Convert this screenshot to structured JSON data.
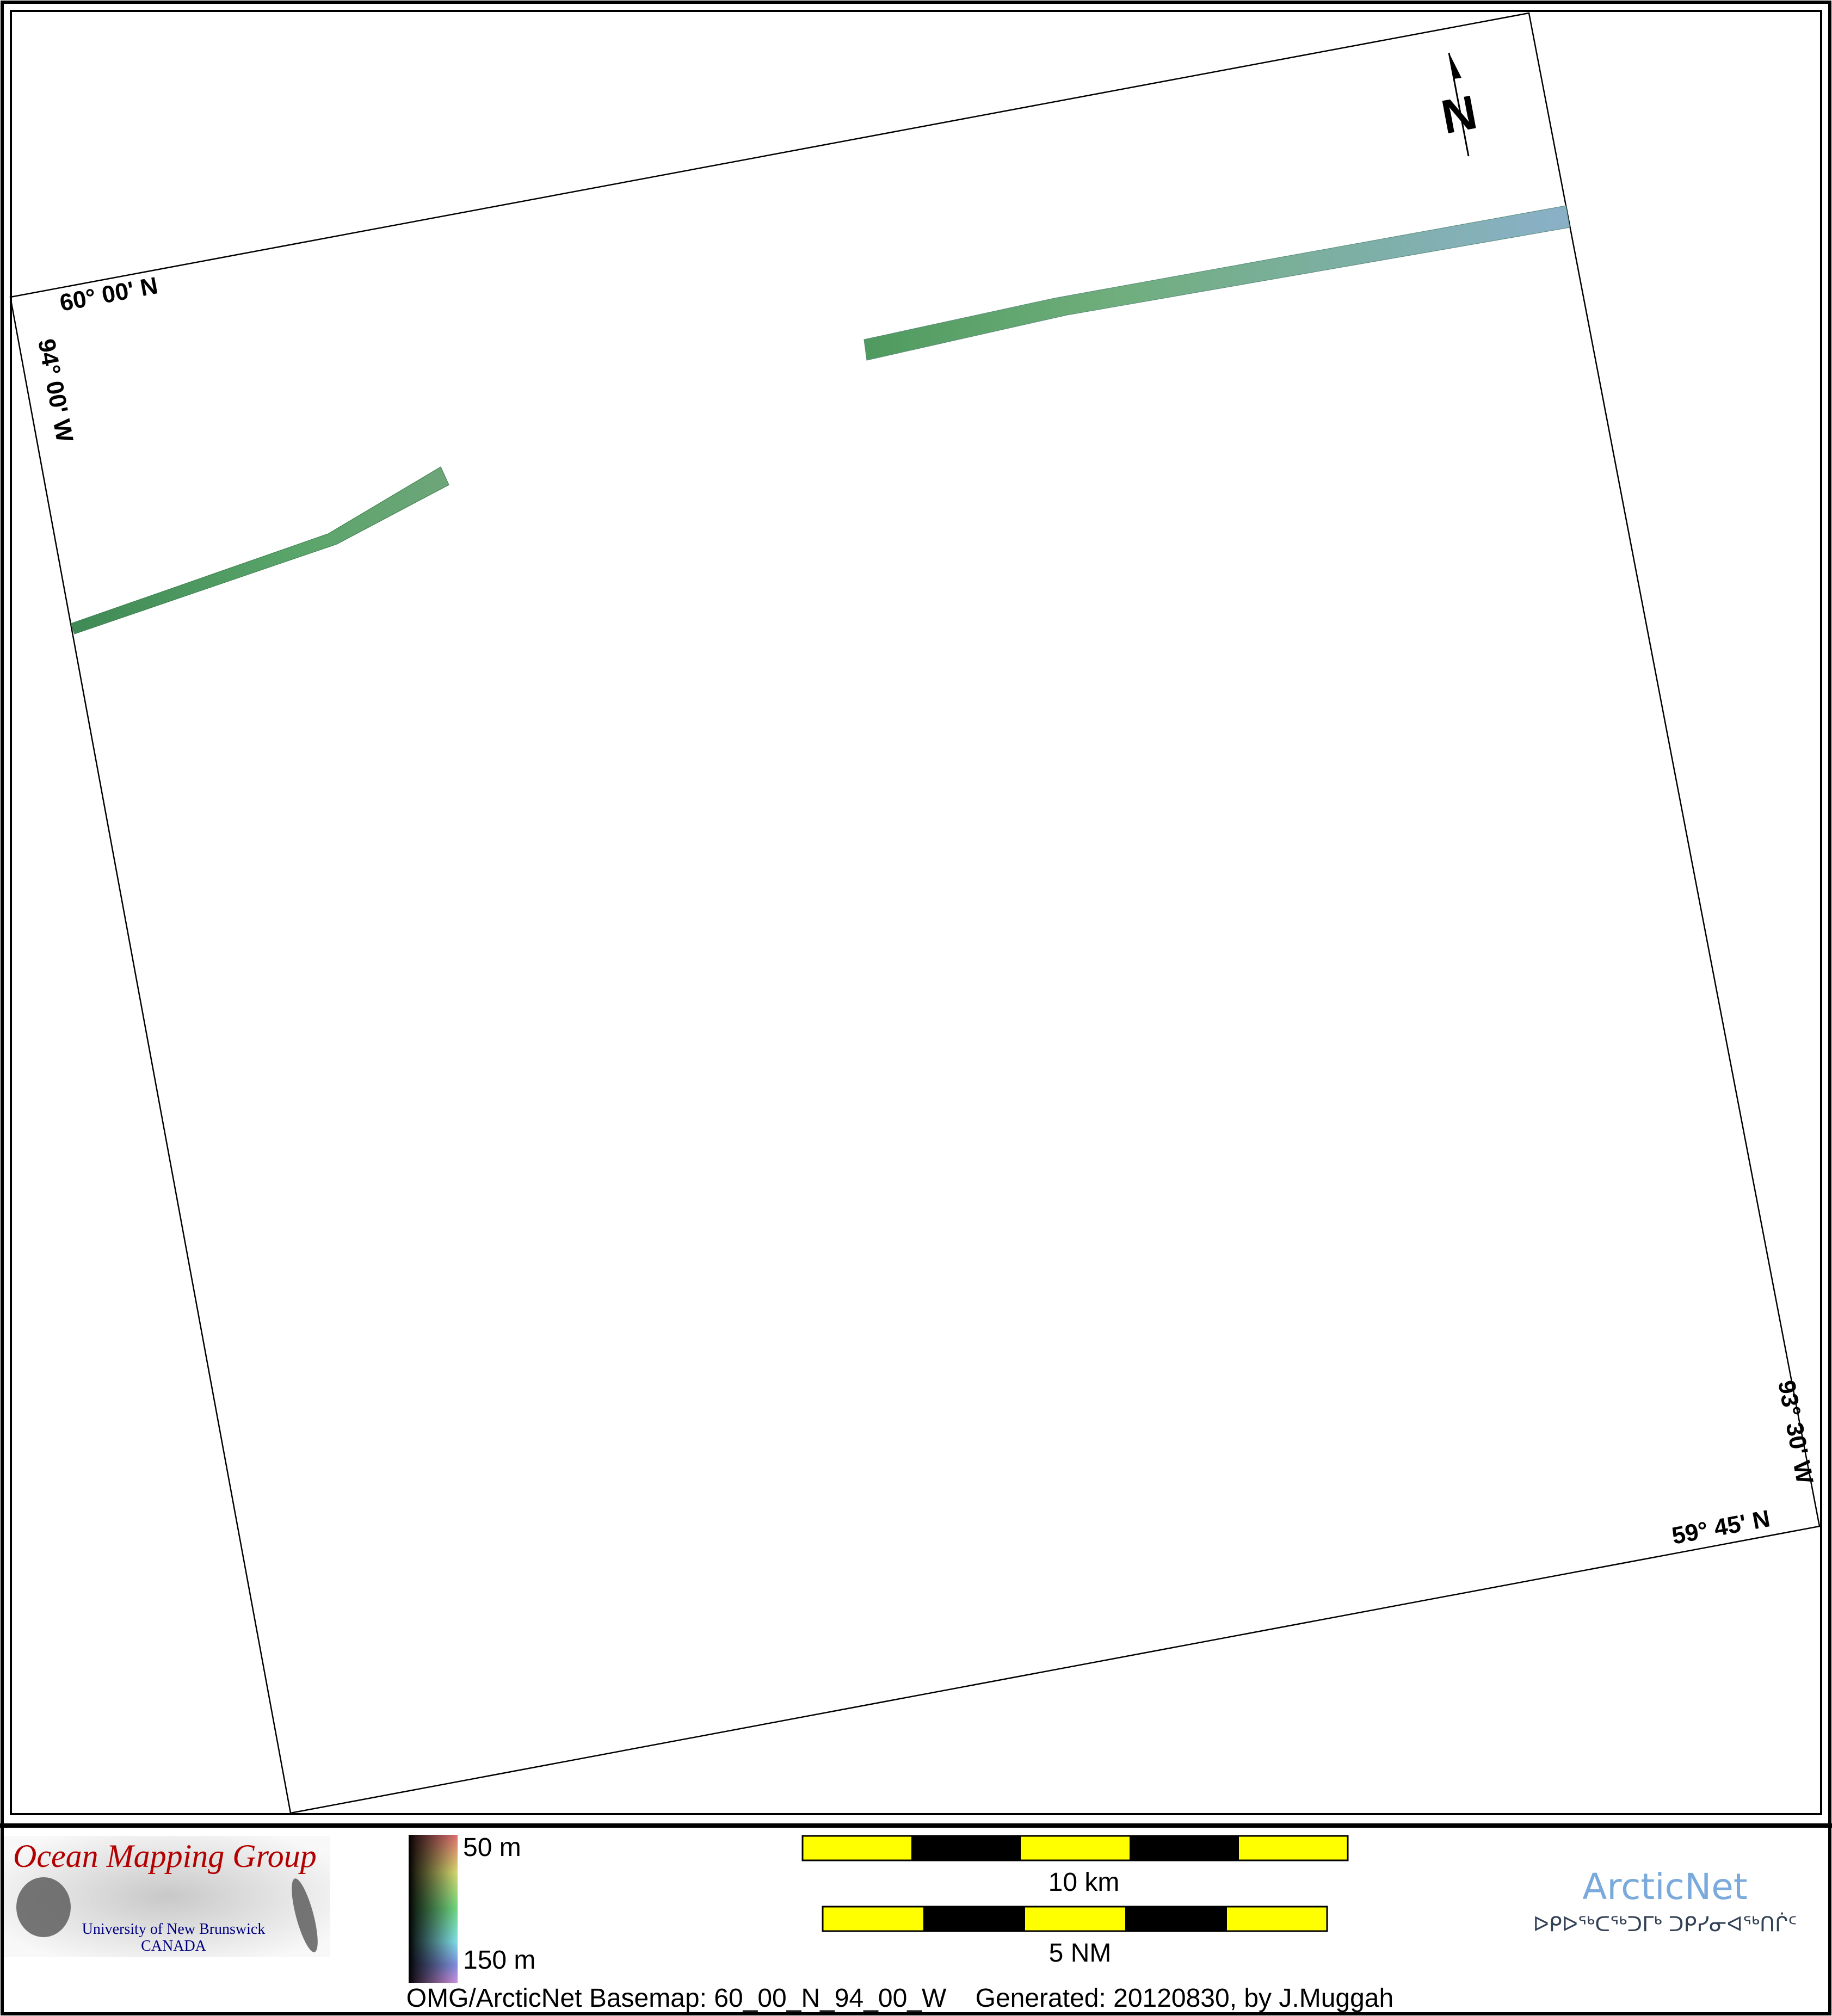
{
  "map": {
    "labels": {
      "top_left_lat": "60° 00' N",
      "top_left_lon": "94° 00' W",
      "bottom_right_lon": "93° 30' W",
      "bottom_right_lat": "59° 45' N"
    },
    "north_arrow": "N",
    "strip_colors": [
      "#4f9a6a",
      "#6fa8a8",
      "#7ab4c8"
    ]
  },
  "legend": {
    "logo": {
      "title": "Ocean Mapping Group",
      "subtitle_line1": "University of New Brunswick",
      "subtitle_line2": "CANADA"
    },
    "depth_scale": {
      "min_label": "50 m",
      "max_label": "150 m"
    },
    "scale_bars": [
      {
        "label": "10 km",
        "segments": 5
      },
      {
        "label": "5 NM",
        "segments": 5
      }
    ],
    "footer": "OMG/ArcticNet Basemap: 60_00_N_94_00_W    Generated: 20120830, by J.Muggah",
    "arcticnet": {
      "name": "ArcticNet",
      "syllabics": "ᐅᑭᐅᖅᑕᖅᑐᒥᒃ ᑐᑭᓯᓂᐊᖅᑎᒌᑦ",
      "color": "#7aa9dc"
    }
  }
}
